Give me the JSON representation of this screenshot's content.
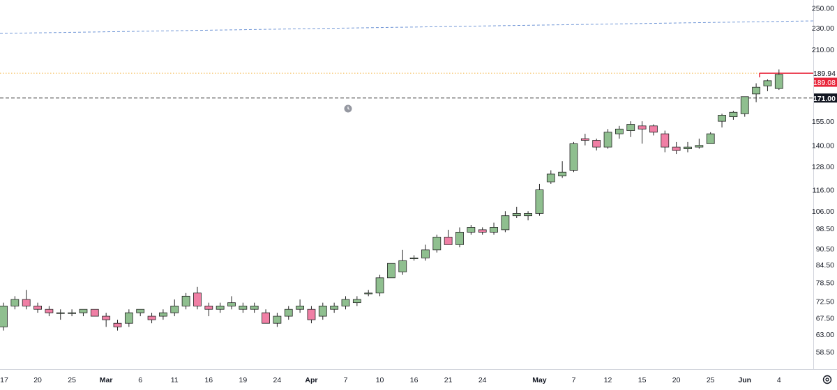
{
  "chart_data": {
    "type": "candlestick",
    "y_scale": "log",
    "ylim": [
      56.5,
      255
    ],
    "grid": false,
    "colors": {
      "up_fill": "#8fbf8f",
      "down_fill": "#f07fa5",
      "wick": "#222222",
      "blue_line": "#6f95d6",
      "orange_line": "#f5b74a",
      "red_line": "#e8253a",
      "black_line": "#333333",
      "axis_text": "#131722",
      "axis_line": "#d1d4dc"
    },
    "y_ticks": [
      "250.00",
      "230.00",
      "210.00",
      "189.94",
      "189.08",
      "171.00",
      "155.00",
      "140.00",
      "128.00",
      "116.00",
      "106.00",
      "98.50",
      "90.50",
      "84.50",
      "78.50",
      "72.50",
      "67.50",
      "63.00",
      "58.50"
    ],
    "x_ticks": [
      "17",
      "20",
      "25",
      "Mar",
      "6",
      "11",
      "16",
      "19",
      "24",
      "Apr",
      "7",
      "10",
      "16",
      "21",
      "24",
      "May",
      "7",
      "12",
      "15",
      "20",
      "25",
      "Jun",
      "4"
    ],
    "price_labels": [
      {
        "text": "189.94",
        "style": "orange"
      },
      {
        "text": "189.08",
        "style": "red"
      },
      {
        "text": "171.00",
        "style": "black"
      }
    ],
    "candles": [
      [
        65,
        72,
        64,
        71
      ],
      [
        71,
        74,
        70,
        73
      ],
      [
        73,
        76,
        70,
        71
      ],
      [
        71,
        72,
        69,
        70
      ],
      [
        70,
        71,
        68,
        69
      ],
      [
        69,
        70,
        67,
        69
      ],
      [
        69,
        70,
        68,
        69
      ],
      [
        69,
        70,
        68,
        70
      ],
      [
        70,
        70,
        68,
        68
      ],
      [
        68,
        69,
        65,
        67
      ],
      [
        66,
        67,
        64,
        65
      ],
      [
        66,
        70,
        65,
        69
      ],
      [
        69,
        70,
        68,
        70
      ],
      [
        68,
        69,
        66,
        67
      ],
      [
        68,
        70,
        67,
        69
      ],
      [
        69,
        73,
        68,
        71
      ],
      [
        71,
        75,
        70,
        74
      ],
      [
        75,
        77,
        70,
        71
      ],
      [
        71,
        72,
        68,
        70
      ],
      [
        70,
        72,
        69,
        71
      ],
      [
        71,
        74,
        70,
        72
      ],
      [
        70,
        72,
        69,
        71
      ],
      [
        70,
        72,
        69,
        71
      ],
      [
        69,
        70,
        66,
        66
      ],
      [
        66,
        69,
        65,
        68
      ],
      [
        68,
        71,
        67,
        70
      ],
      [
        70,
        73,
        69,
        71
      ],
      [
        70,
        71,
        66,
        67
      ],
      [
        68,
        72,
        67,
        71
      ],
      [
        70,
        72,
        69,
        71
      ],
      [
        71,
        74,
        70,
        73
      ],
      [
        72,
        74,
        71,
        73
      ],
      [
        75,
        76,
        74,
        75
      ],
      [
        75,
        81,
        74,
        80
      ],
      [
        80,
        85,
        80,
        85
      ],
      [
        82,
        90,
        81,
        86
      ],
      [
        87,
        88,
        86,
        87
      ],
      [
        87,
        92,
        86,
        90
      ],
      [
        90,
        96,
        89,
        95
      ],
      [
        95,
        98,
        93,
        92
      ],
      [
        92,
        99,
        91,
        97
      ],
      [
        97,
        100,
        96,
        99
      ],
      [
        98,
        99,
        96,
        97
      ],
      [
        97,
        101,
        96,
        99
      ],
      [
        98,
        106,
        97,
        104
      ],
      [
        104,
        108,
        103,
        105
      ],
      [
        104,
        106,
        102,
        105
      ],
      [
        105,
        119,
        104,
        116
      ],
      [
        120,
        126,
        119,
        124
      ],
      [
        123,
        131,
        122,
        125
      ],
      [
        126,
        142,
        125,
        141
      ],
      [
        144,
        147,
        140,
        143
      ],
      [
        143,
        144,
        137,
        139
      ],
      [
        139,
        150,
        138,
        148
      ],
      [
        147,
        152,
        144,
        150
      ],
      [
        149,
        155,
        145,
        153
      ],
      [
        152,
        155,
        141,
        150
      ],
      [
        152,
        153,
        146,
        148
      ],
      [
        147,
        149,
        136,
        139
      ],
      [
        139,
        142,
        135,
        137
      ],
      [
        138,
        142,
        136,
        139
      ],
      [
        139,
        144,
        138,
        140
      ],
      [
        141,
        148,
        141,
        147
      ],
      [
        155,
        160,
        151,
        159
      ],
      [
        158,
        162,
        156,
        161
      ],
      [
        160,
        172,
        158,
        172
      ],
      [
        174,
        182,
        168,
        179
      ],
      [
        180,
        185,
        176,
        184
      ],
      [
        178,
        193,
        177,
        189
      ]
    ]
  }
}
